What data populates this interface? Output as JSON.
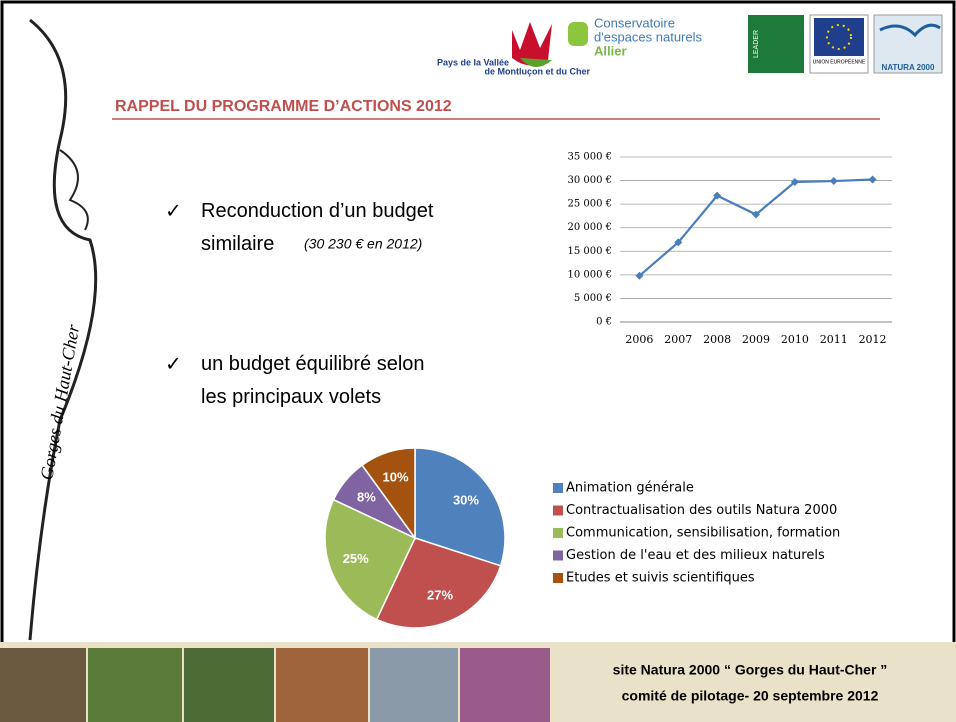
{
  "header": {
    "logos": [
      "Pays de la Vallée",
      "de Montluçon et du Cher",
      "Conservatoire",
      "d'espaces naturels",
      "Allier",
      "LEADER",
      "UNION EUROPÉENNE",
      "NATURA 2000"
    ]
  },
  "side_text": "Gorges du Haut-Cher",
  "title": "RAPPEL DU PROGRAMME D’ACTIONS 2012",
  "bullets": [
    {
      "text": "Reconduction d’un budget similaire",
      "note": "(30 230 € en 2012)"
    },
    {
      "text": "un budget équilibré selon les principaux volets"
    }
  ],
  "footer": [
    "site Natura 2000 “ Gorges du Haut-Cher ”",
    "comité de pilotage- 20 septembre 2012"
  ],
  "chart_data": [
    {
      "type": "line",
      "categories": [
        "2006",
        "2007",
        "2008",
        "2009",
        "2010",
        "2011",
        "2012"
      ],
      "series": [
        {
          "name": "Budget",
          "color": "#4a7ebb",
          "values": [
            9800,
            16900,
            26800,
            22800,
            29700,
            29900,
            30230
          ]
        }
      ],
      "ylim": [
        0,
        35000
      ],
      "yticks": [
        {
          "value": 0,
          "label": "0 €"
        },
        {
          "value": 5000,
          "label": "5 000 €"
        },
        {
          "value": 10000,
          "label": "10 000 €"
        },
        {
          "value": 15000,
          "label": "15 000 €"
        },
        {
          "value": 20000,
          "label": "20 000 €"
        },
        {
          "value": 25000,
          "label": "25 000 €"
        },
        {
          "value": 30000,
          "label": "30 000 €"
        },
        {
          "value": 35000,
          "label": "35 000 €"
        }
      ],
      "grid": true
    },
    {
      "type": "pie",
      "categories": [
        "Animation générale",
        "Contractualisation des outils Natura 2000",
        "Communication, sensibilisation, formation",
        "Gestion de l'eau et des milieux naturels",
        "Etudes et suivis scientifiques"
      ],
      "values": [
        30,
        27,
        25,
        8,
        10
      ],
      "value_labels": [
        "30%",
        "27%",
        "25%",
        "8%",
        "10%"
      ],
      "colors": [
        "#4f81bd",
        "#c0504d",
        "#9bbb59",
        "#8064a2",
        "#a3520f"
      ],
      "legend": "right"
    }
  ]
}
